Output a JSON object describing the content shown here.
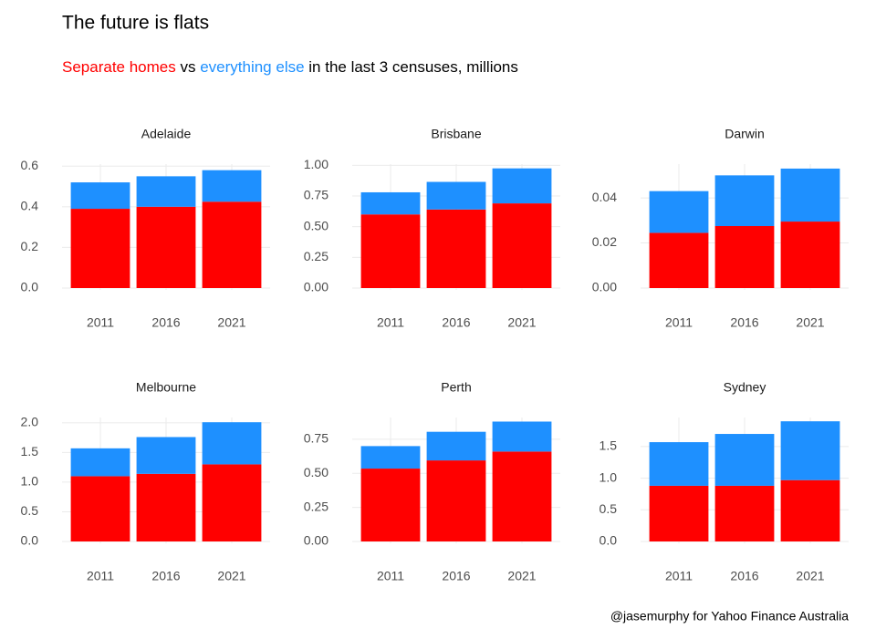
{
  "title": "The future is flats",
  "series": [
    {
      "name": "Separate homes",
      "color": "#ff0000"
    },
    {
      "name": "everything else",
      "color": "#1e90ff"
    }
  ],
  "subtitle_joiner": " vs ",
  "subtitle_tail": " in the last 3 censuses, millions",
  "caption": "@jasemurphy for Yahoo Finance Australia",
  "chart_data": [
    {
      "type": "bar",
      "stacked": true,
      "title": "Adelaide",
      "categories": [
        "2011",
        "2016",
        "2021"
      ],
      "series": [
        {
          "values": [
            0.39,
            0.4,
            0.425
          ]
        },
        {
          "values": [
            0.13,
            0.15,
            0.155
          ]
        }
      ],
      "ylim": [
        0,
        0.61
      ],
      "yticks": [
        {
          "value": 0,
          "label": "0.0"
        },
        0.2,
        0.4,
        0.6
      ],
      "grid": true
    },
    {
      "type": "bar",
      "stacked": true,
      "title": "Brisbane",
      "categories": [
        "2011",
        "2016",
        "2021"
      ],
      "series": [
        {
          "values": [
            0.6,
            0.64,
            0.69
          ]
        },
        {
          "values": [
            0.18,
            0.225,
            0.285
          ]
        }
      ],
      "ylim": [
        0,
        1.01
      ],
      "yticks": [
        {
          "value": 0,
          "label": "0.00"
        },
        0.25,
        {
          "value": 0.5,
          "label": "0.50"
        },
        0.75,
        {
          "value": 1,
          "label": "1.00"
        }
      ],
      "grid": true
    },
    {
      "type": "bar",
      "stacked": true,
      "title": "Darwin",
      "categories": [
        "2011",
        "2016",
        "2021"
      ],
      "series": [
        {
          "values": [
            0.0245,
            0.0275,
            0.0295
          ]
        },
        {
          "values": [
            0.0185,
            0.0225,
            0.0235
          ]
        }
      ],
      "ylim": [
        0,
        0.055
      ],
      "yticks": [
        {
          "value": 0,
          "label": "0.00"
        },
        0.02,
        0.04
      ],
      "grid": true
    },
    {
      "type": "bar",
      "stacked": true,
      "title": "Melbourne",
      "categories": [
        "2011",
        "2016",
        "2021"
      ],
      "series": [
        {
          "values": [
            1.1,
            1.14,
            1.3
          ]
        },
        {
          "values": [
            0.47,
            0.62,
            0.71
          ]
        }
      ],
      "ylim": [
        0,
        2.09
      ],
      "yticks": [
        {
          "value": 0,
          "label": "0.0"
        },
        0.5,
        {
          "value": 1,
          "label": "1.0"
        },
        1.5,
        {
          "value": 2,
          "label": "2.0"
        }
      ],
      "grid": true
    },
    {
      "type": "bar",
      "stacked": true,
      "title": "Perth",
      "categories": [
        "2011",
        "2016",
        "2021"
      ],
      "series": [
        {
          "values": [
            0.535,
            0.595,
            0.66
          ]
        },
        {
          "values": [
            0.165,
            0.21,
            0.22
          ]
        }
      ],
      "ylim": [
        0,
        0.91
      ],
      "yticks": [
        {
          "value": 0,
          "label": "0.00"
        },
        0.25,
        {
          "value": 0.5,
          "label": "0.50"
        },
        0.75
      ],
      "grid": true
    },
    {
      "type": "bar",
      "stacked": true,
      "title": "Sydney",
      "categories": [
        "2011",
        "2016",
        "2021"
      ],
      "series": [
        {
          "values": [
            0.88,
            0.88,
            0.97
          ]
        },
        {
          "values": [
            0.69,
            0.82,
            0.93
          ]
        }
      ],
      "ylim": [
        0,
        1.96
      ],
      "yticks": [
        {
          "value": 0,
          "label": "0.0"
        },
        0.5,
        {
          "value": 1,
          "label": "1.0"
        },
        1.5
      ],
      "grid": true
    }
  ]
}
